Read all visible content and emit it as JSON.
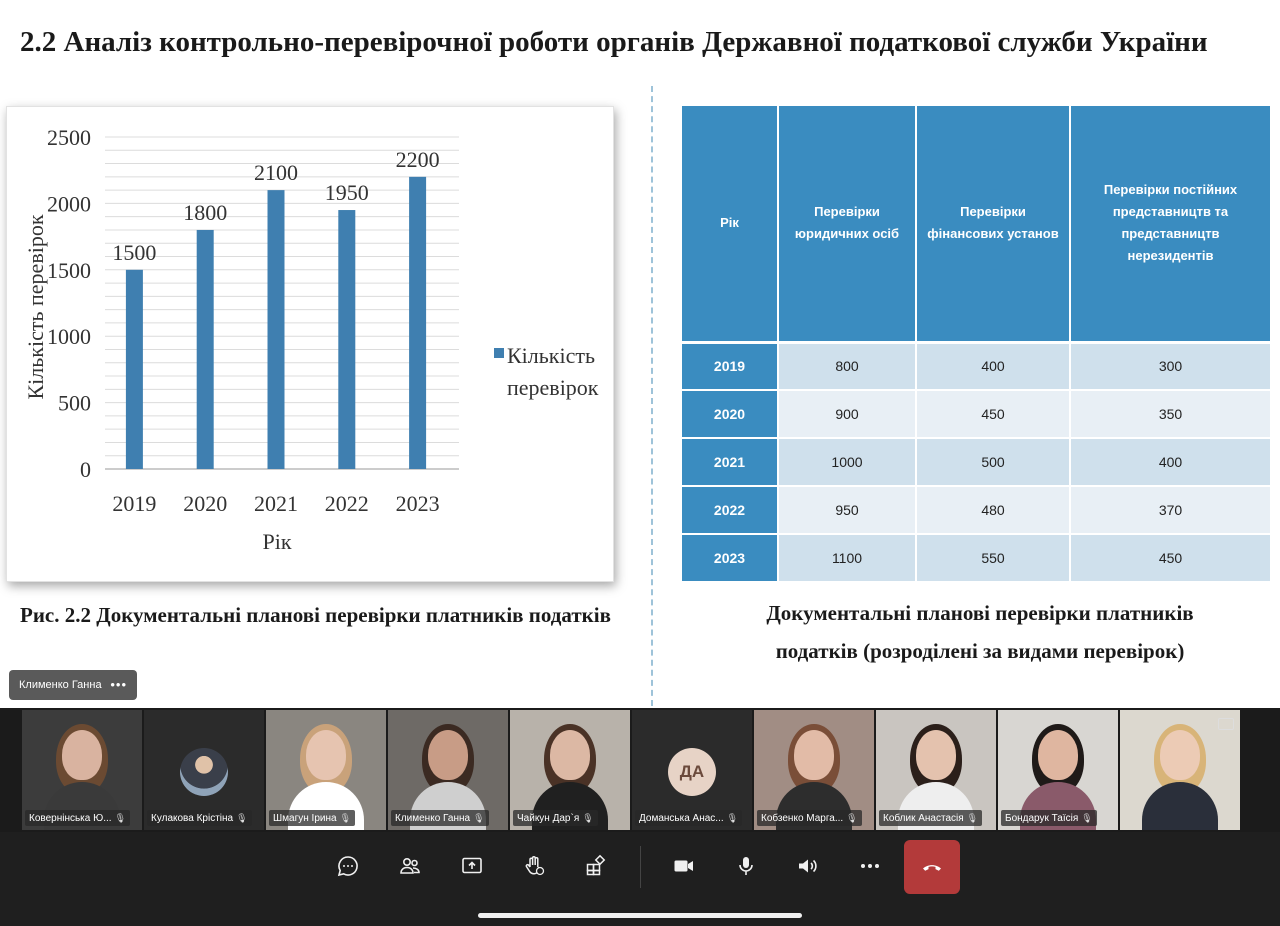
{
  "slide": {
    "title": "2.2 Аналіз контрольно-перевірочної роботи органів Державної податкової служби України",
    "chart_caption": "Рис. 2.2 Документальні планові перевірки платників податків",
    "table_caption_line1": "Документальні планові перевірки платників",
    "table_caption_line2": "податків (розроділені за видами перевірок)",
    "speaker_chip": "Клименко Ганна",
    "speaker_chip_more": "•••"
  },
  "chart_data": {
    "type": "bar",
    "categories": [
      "2019",
      "2020",
      "2021",
      "2022",
      "2023"
    ],
    "series": [
      {
        "name": "Кількість перевірок",
        "values": [
          1500,
          1800,
          2100,
          1950,
          2200
        ]
      }
    ],
    "data_labels": [
      "1500",
      "1800",
      "2100",
      "1950",
      "2200"
    ],
    "yticks": [
      "0",
      "500",
      "1000",
      "1500",
      "2000",
      "2500"
    ],
    "ylim": [
      0,
      2500
    ],
    "xlabel": "Рік",
    "ylabel": "Кількість перевірок",
    "legend_line1": "Кількість",
    "legend_line2": "перевірок",
    "legend_position": "right",
    "grid": true,
    "bar_color": "#3f7fb0"
  },
  "table": {
    "headers": [
      "Рік",
      "Перевірки юридичних осіб",
      "Перевірки фінансових установ",
      "Перевірки постійних представництв та представництв нерезидентів"
    ],
    "rows": [
      [
        "2019",
        "800",
        "400",
        "300"
      ],
      [
        "2020",
        "900",
        "450",
        "350"
      ],
      [
        "2021",
        "1000",
        "500",
        "400"
      ],
      [
        "2022",
        "950",
        "480",
        "370"
      ],
      [
        "2023",
        "1100",
        "550",
        "450"
      ]
    ],
    "header_color": "#3a8cc0"
  },
  "participants": [
    {
      "name": "Ковернінська Ю...",
      "style": "video"
    },
    {
      "name": "Кулакова Крістіна",
      "style": "avatar"
    },
    {
      "name": "Шмагун Ірина",
      "style": "video"
    },
    {
      "name": "Клименко Ганна",
      "style": "video"
    },
    {
      "name": "Чайкун Дар`я",
      "style": "video"
    },
    {
      "name": "Доманська Анас...",
      "style": "initials",
      "initials": "ДА"
    },
    {
      "name": "Кобзенко Марга...",
      "style": "video"
    },
    {
      "name": "Коблик Анастасія",
      "style": "video"
    },
    {
      "name": "Бондарук Таїсія",
      "style": "video"
    },
    {
      "name": "",
      "style": "video"
    }
  ],
  "controls": {
    "icons": [
      "chat-icon",
      "people-icon",
      "share-screen-icon",
      "raise-hand-icon",
      "apps-icon",
      "camera-icon",
      "microphone-icon",
      "speaker-icon",
      "more-icon",
      "hang-up-icon"
    ],
    "hangup_color": "#b33a3a"
  }
}
